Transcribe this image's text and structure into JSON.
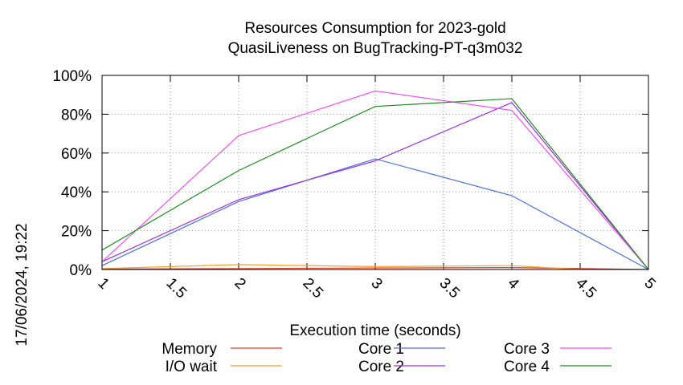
{
  "timestamp": "17/06/2024, 19:22",
  "chart_data": {
    "type": "line",
    "title": "Resources Consumption for 2023-gold",
    "subtitle": "QuasiLiveness on BugTracking-PT-q3m032",
    "xlabel": "Execution time (seconds)",
    "ylabel": "",
    "xlim": [
      1,
      5
    ],
    "ylim": [
      0,
      100
    ],
    "x_ticks": [
      "1",
      "1.5",
      "2",
      "2.5",
      "3",
      "3.5",
      "4",
      "4.5",
      "5"
    ],
    "y_ticks": [
      "0%",
      "20%",
      "40%",
      "60%",
      "80%",
      "100%"
    ],
    "grid": true,
    "legend_position": "bottom",
    "series": [
      {
        "name": "Memory",
        "color": "#e8412a",
        "x": [
          1,
          2,
          3,
          4,
          5
        ],
        "values": [
          0.2,
          0.5,
          0.8,
          1.0,
          0
        ]
      },
      {
        "name": "I/O wait",
        "color": "#f0a030",
        "x": [
          1,
          2,
          3,
          4,
          4.5
        ],
        "values": [
          0.5,
          2.5,
          1.5,
          2.0,
          0
        ]
      },
      {
        "name": "Core 1",
        "color": "#4a72d4",
        "x": [
          1,
          2,
          3,
          4,
          5
        ],
        "values": [
          2,
          35,
          57,
          38,
          0
        ]
      },
      {
        "name": "Core 2",
        "color": "#9b30e0",
        "x": [
          1,
          2,
          3,
          4,
          5
        ],
        "values": [
          4,
          36,
          56,
          86,
          0
        ]
      },
      {
        "name": "Core 3",
        "color": "#f050f0",
        "x": [
          1,
          2,
          3,
          4,
          5
        ],
        "values": [
          4,
          69,
          92,
          82,
          0
        ]
      },
      {
        "name": "Core 4",
        "color": "#1e8a1e",
        "x": [
          1,
          2,
          3,
          4,
          5
        ],
        "values": [
          10,
          51,
          84,
          88,
          0
        ]
      }
    ]
  }
}
